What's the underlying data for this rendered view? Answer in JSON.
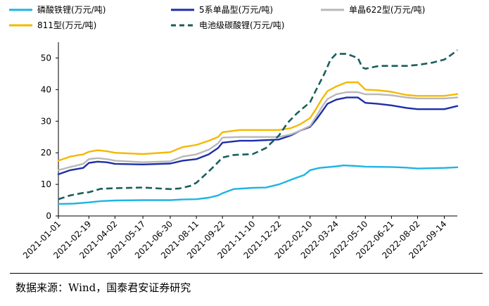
{
  "chart_data": {
    "type": "line",
    "title": "",
    "xlabel": "",
    "ylabel": "",
    "ylim": [
      0,
      55
    ],
    "yticks": [
      0,
      10,
      20,
      30,
      40,
      50
    ],
    "grid": false,
    "legend_position": "top",
    "x_range": [
      "2021-01-01",
      "2022-10-05"
    ],
    "x_tick_labels": [
      "2021-01-01",
      "2021-02-19",
      "2021-04-02",
      "2021-05-17",
      "2021-06-30",
      "2021-08-11",
      "2021-09-22",
      "2021-11-10",
      "2021-12-22",
      "2022-02-10",
      "2022-03-24",
      "2022-05-10",
      "2022-06-21",
      "2022-08-02",
      "2022-09-14"
    ],
    "series": [
      {
        "name": "磷酸铁锂(万元/吨)",
        "color": "#1fb4e4",
        "dash": "solid",
        "points": [
          [
            "2021-01-01",
            3.8
          ],
          [
            "2021-01-25",
            3.9
          ],
          [
            "2021-02-19",
            4.3
          ],
          [
            "2021-03-10",
            4.7
          ],
          [
            "2021-04-02",
            4.9
          ],
          [
            "2021-05-17",
            5.0
          ],
          [
            "2021-06-30",
            5.0
          ],
          [
            "2021-07-20",
            5.2
          ],
          [
            "2021-08-11",
            5.3
          ],
          [
            "2021-08-31",
            5.8
          ],
          [
            "2021-09-15",
            6.5
          ],
          [
            "2021-09-22",
            7.2
          ],
          [
            "2021-10-10",
            8.5
          ],
          [
            "2021-11-10",
            8.9
          ],
          [
            "2021-12-01",
            9.0
          ],
          [
            "2021-12-22",
            10.0
          ],
          [
            "2022-01-15",
            11.8
          ],
          [
            "2022-02-01",
            13.0
          ],
          [
            "2022-02-10",
            14.5
          ],
          [
            "2022-02-25",
            15.2
          ],
          [
            "2022-03-24",
            15.7
          ],
          [
            "2022-04-05",
            16.0
          ],
          [
            "2022-04-25",
            15.8
          ],
          [
            "2022-05-10",
            15.6
          ],
          [
            "2022-06-21",
            15.5
          ],
          [
            "2022-07-15",
            15.3
          ],
          [
            "2022-08-02",
            15.0
          ],
          [
            "2022-09-14",
            15.2
          ],
          [
            "2022-10-05",
            15.4
          ]
        ]
      },
      {
        "name": "5系单晶型(万元/吨)",
        "color": "#1c2fa8",
        "dash": "solid",
        "points": [
          [
            "2021-01-01",
            13.2
          ],
          [
            "2021-01-20",
            14.5
          ],
          [
            "2021-02-10",
            15.2
          ],
          [
            "2021-02-19",
            16.8
          ],
          [
            "2021-03-05",
            17.2
          ],
          [
            "2021-03-20",
            17.0
          ],
          [
            "2021-04-02",
            16.5
          ],
          [
            "2021-05-17",
            16.3
          ],
          [
            "2021-06-30",
            16.6
          ],
          [
            "2021-07-20",
            17.5
          ],
          [
            "2021-08-11",
            18.0
          ],
          [
            "2021-08-31",
            19.5
          ],
          [
            "2021-09-15",
            21.5
          ],
          [
            "2021-09-22",
            23.2
          ],
          [
            "2021-10-20",
            23.8
          ],
          [
            "2021-11-10",
            23.8
          ],
          [
            "2021-12-22",
            24.2
          ],
          [
            "2022-01-10",
            25.5
          ],
          [
            "2022-01-25",
            27.0
          ],
          [
            "2022-02-10",
            28.2
          ],
          [
            "2022-02-20",
            30.5
          ],
          [
            "2022-03-01",
            33.0
          ],
          [
            "2022-03-10",
            35.5
          ],
          [
            "2022-03-24",
            36.8
          ],
          [
            "2022-04-10",
            37.5
          ],
          [
            "2022-04-28",
            37.5
          ],
          [
            "2022-05-10",
            35.8
          ],
          [
            "2022-05-30",
            35.5
          ],
          [
            "2022-06-21",
            35.0
          ],
          [
            "2022-07-15",
            34.2
          ],
          [
            "2022-08-02",
            33.8
          ],
          [
            "2022-09-14",
            33.8
          ],
          [
            "2022-10-05",
            34.8
          ]
        ]
      },
      {
        "name": "单晶622型(万元/吨)",
        "color": "#b8b8b8",
        "dash": "solid",
        "points": [
          [
            "2021-01-01",
            14.5
          ],
          [
            "2021-01-20",
            15.5
          ],
          [
            "2021-02-10",
            16.5
          ],
          [
            "2021-02-19",
            18.0
          ],
          [
            "2021-03-05",
            18.3
          ],
          [
            "2021-03-20",
            18.0
          ],
          [
            "2021-04-02",
            17.5
          ],
          [
            "2021-05-17",
            17.0
          ],
          [
            "2021-06-30",
            17.3
          ],
          [
            "2021-07-20",
            18.8
          ],
          [
            "2021-08-11",
            19.5
          ],
          [
            "2021-08-31",
            21.0
          ],
          [
            "2021-09-15",
            23.0
          ],
          [
            "2021-09-22",
            24.8
          ],
          [
            "2021-10-20",
            25.0
          ],
          [
            "2021-11-10",
            25.0
          ],
          [
            "2021-12-22",
            25.0
          ],
          [
            "2022-01-10",
            25.8
          ],
          [
            "2022-01-25",
            27.0
          ],
          [
            "2022-02-10",
            28.5
          ],
          [
            "2022-02-20",
            31.5
          ],
          [
            "2022-03-01",
            34.5
          ],
          [
            "2022-03-10",
            37.0
          ],
          [
            "2022-03-24",
            38.5
          ],
          [
            "2022-04-10",
            39.2
          ],
          [
            "2022-04-28",
            39.2
          ],
          [
            "2022-05-10",
            38.5
          ],
          [
            "2022-05-30",
            38.5
          ],
          [
            "2022-06-21",
            38.2
          ],
          [
            "2022-07-15",
            37.5
          ],
          [
            "2022-08-02",
            37.2
          ],
          [
            "2022-09-14",
            37.2
          ],
          [
            "2022-10-05",
            37.5
          ]
        ]
      },
      {
        "name": "811型(万元/吨)",
        "color": "#f5b800",
        "dash": "solid",
        "points": [
          [
            "2021-01-01",
            17.5
          ],
          [
            "2021-01-20",
            18.8
          ],
          [
            "2021-02-10",
            19.5
          ],
          [
            "2021-02-19",
            20.3
          ],
          [
            "2021-03-05",
            20.8
          ],
          [
            "2021-03-20",
            20.5
          ],
          [
            "2021-04-02",
            20.0
          ],
          [
            "2021-05-17",
            19.6
          ],
          [
            "2021-06-30",
            20.2
          ],
          [
            "2021-07-20",
            21.8
          ],
          [
            "2021-08-11",
            22.5
          ],
          [
            "2021-08-31",
            23.8
          ],
          [
            "2021-09-15",
            25.0
          ],
          [
            "2021-09-22",
            26.5
          ],
          [
            "2021-10-20",
            27.2
          ],
          [
            "2021-11-10",
            27.2
          ],
          [
            "2021-12-22",
            27.2
          ],
          [
            "2022-01-10",
            27.8
          ],
          [
            "2022-01-25",
            29.0
          ],
          [
            "2022-02-10",
            31.0
          ],
          [
            "2022-02-20",
            34.0
          ],
          [
            "2022-03-01",
            37.0
          ],
          [
            "2022-03-10",
            39.5
          ],
          [
            "2022-03-24",
            41.0
          ],
          [
            "2022-04-10",
            42.3
          ],
          [
            "2022-04-28",
            42.3
          ],
          [
            "2022-05-10",
            40.0
          ],
          [
            "2022-05-30",
            39.8
          ],
          [
            "2022-06-21",
            39.3
          ],
          [
            "2022-07-15",
            38.3
          ],
          [
            "2022-08-02",
            38.0
          ],
          [
            "2022-09-14",
            38.0
          ],
          [
            "2022-10-05",
            38.6
          ]
        ]
      },
      {
        "name": "电池级碳酸锂(万元/吨)",
        "color": "#1b5e5e",
        "dash": "dashed",
        "points": [
          [
            "2021-01-01",
            5.3
          ],
          [
            "2021-01-20",
            6.5
          ],
          [
            "2021-02-10",
            7.3
          ],
          [
            "2021-02-19",
            7.5
          ],
          [
            "2021-03-10",
            8.6
          ],
          [
            "2021-04-02",
            8.8
          ],
          [
            "2021-05-17",
            9.0
          ],
          [
            "2021-06-30",
            8.5
          ],
          [
            "2021-07-15",
            8.7
          ],
          [
            "2021-08-01",
            9.5
          ],
          [
            "2021-08-11",
            10.5
          ],
          [
            "2021-08-25",
            13.0
          ],
          [
            "2021-09-10",
            16.0
          ],
          [
            "2021-09-22",
            18.5
          ],
          [
            "2021-10-10",
            19.3
          ],
          [
            "2021-11-10",
            19.6
          ],
          [
            "2021-12-01",
            21.5
          ],
          [
            "2021-12-22",
            25.5
          ],
          [
            "2022-01-05",
            29.5
          ],
          [
            "2022-01-20",
            32.5
          ],
          [
            "2022-02-10",
            36.0
          ],
          [
            "2022-02-20",
            40.0
          ],
          [
            "2022-03-05",
            45.0
          ],
          [
            "2022-03-15",
            49.5
          ],
          [
            "2022-03-24",
            51.3
          ],
          [
            "2022-04-10",
            51.3
          ],
          [
            "2022-04-28",
            50.0
          ],
          [
            "2022-05-05",
            47.0
          ],
          [
            "2022-05-10",
            46.6
          ],
          [
            "2022-06-01",
            47.5
          ],
          [
            "2022-06-21",
            47.5
          ],
          [
            "2022-07-15",
            47.5
          ],
          [
            "2022-08-02",
            47.8
          ],
          [
            "2022-08-25",
            48.5
          ],
          [
            "2022-09-14",
            49.5
          ],
          [
            "2022-09-25",
            51.0
          ],
          [
            "2022-10-05",
            52.5
          ]
        ]
      }
    ]
  },
  "source": "数据来源：Wind，国泰君安证券研究"
}
